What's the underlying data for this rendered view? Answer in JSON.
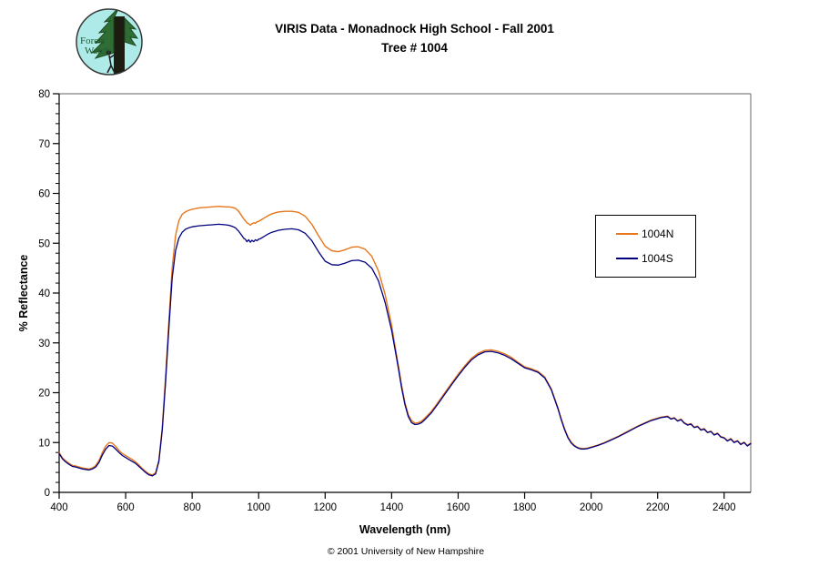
{
  "header": {
    "title_line1": "VIRIS Data - Monadnock High School - Fall 2001",
    "title_line2": "Tree # 1004",
    "logo": {
      "line1": "Forest",
      "line2": "Watch"
    }
  },
  "footer": {
    "copyright": "© 2001 University of New Hampshire"
  },
  "colors": {
    "series_north": "#E8761A",
    "series_south": "#000080",
    "plot_border_gray": "#808080",
    "axis_black": "#000000",
    "logo_background": "#aeeae8",
    "logo_tree_green": "#2f6d35",
    "logo_text_green": "#1e5a2e"
  },
  "chart_data": {
    "type": "line",
    "title": "VIRIS Data - Monadnock High School - Fall 2001",
    "subtitle": "Tree # 1004",
    "xlabel": "Wavelength (nm)",
    "ylabel": "% Reflectance",
    "xlim": [
      400,
      2480
    ],
    "ylim": [
      0,
      80
    ],
    "x_ticks": [
      400,
      600,
      800,
      1000,
      1200,
      1400,
      1600,
      1800,
      2000,
      2200,
      2400
    ],
    "y_ticks": [
      0,
      10,
      20,
      30,
      40,
      50,
      60,
      70,
      80
    ],
    "y_minor_step": 2,
    "grid": false,
    "legend_position": "middle-right",
    "x": [
      400,
      410,
      420,
      430,
      440,
      450,
      460,
      470,
      480,
      490,
      500,
      510,
      520,
      530,
      540,
      550,
      560,
      570,
      580,
      590,
      600,
      610,
      620,
      630,
      640,
      650,
      660,
      670,
      680,
      690,
      700,
      710,
      720,
      730,
      740,
      750,
      760,
      770,
      780,
      790,
      800,
      820,
      840,
      860,
      880,
      900,
      910,
      920,
      930,
      940,
      950,
      955,
      960,
      965,
      970,
      975,
      980,
      985,
      990,
      995,
      1000,
      1005,
      1010,
      1020,
      1030,
      1040,
      1060,
      1080,
      1100,
      1120,
      1140,
      1160,
      1180,
      1200,
      1220,
      1240,
      1260,
      1280,
      1300,
      1320,
      1340,
      1360,
      1380,
      1400,
      1410,
      1420,
      1430,
      1440,
      1450,
      1460,
      1470,
      1480,
      1490,
      1500,
      1520,
      1540,
      1560,
      1580,
      1600,
      1620,
      1640,
      1660,
      1680,
      1700,
      1720,
      1740,
      1760,
      1780,
      1800,
      1820,
      1840,
      1860,
      1880,
      1900,
      1910,
      1920,
      1930,
      1940,
      1950,
      1960,
      1970,
      1980,
      1990,
      2000,
      2020,
      2040,
      2060,
      2080,
      2100,
      2120,
      2140,
      2160,
      2180,
      2200,
      2210,
      2220,
      2230,
      2240,
      2250,
      2260,
      2270,
      2280,
      2290,
      2300,
      2310,
      2320,
      2330,
      2340,
      2350,
      2360,
      2370,
      2380,
      2390,
      2400,
      2410,
      2420,
      2430,
      2440,
      2450,
      2460,
      2470,
      2480
    ],
    "series": [
      {
        "name": "1004N",
        "color": "#E8761A",
        "values": [
          8.0,
          6.9,
          6.3,
          5.8,
          5.4,
          5.3,
          5.1,
          4.9,
          4.8,
          4.7,
          4.9,
          5.4,
          6.4,
          8.0,
          9.3,
          10.0,
          9.9,
          9.2,
          8.4,
          7.8,
          7.4,
          7.0,
          6.6,
          6.1,
          5.5,
          4.8,
          4.2,
          3.7,
          3.5,
          3.9,
          6.5,
          13.0,
          23.0,
          34.5,
          45.0,
          51.5,
          54.5,
          55.8,
          56.3,
          56.6,
          56.8,
          57.1,
          57.2,
          57.3,
          57.4,
          57.3,
          57.3,
          57.2,
          57.0,
          56.4,
          55.4,
          54.9,
          54.5,
          54.1,
          53.9,
          53.6,
          53.9,
          54.1,
          54.0,
          54.3,
          54.4,
          54.6,
          54.8,
          55.2,
          55.6,
          55.9,
          56.3,
          56.4,
          56.4,
          56.2,
          55.4,
          53.8,
          51.5,
          49.4,
          48.5,
          48.3,
          48.7,
          49.2,
          49.3,
          48.8,
          47.4,
          44.5,
          39.8,
          33.5,
          29.5,
          25.5,
          21.5,
          18.0,
          15.6,
          14.4,
          13.9,
          14.0,
          14.3,
          14.9,
          16.3,
          18.1,
          20.0,
          21.9,
          23.7,
          25.4,
          26.9,
          27.9,
          28.5,
          28.6,
          28.3,
          27.8,
          27.1,
          26.1,
          25.2,
          24.8,
          24.3,
          23.2,
          20.8,
          17.0,
          14.8,
          12.8,
          11.2,
          10.1,
          9.4,
          9.0,
          8.8,
          8.8,
          8.9,
          9.1,
          9.5,
          10.0,
          10.6,
          11.2,
          11.9,
          12.6,
          13.3,
          13.9,
          14.5,
          14.9,
          15.1,
          15.2,
          15.3,
          14.8,
          15.0,
          14.4,
          14.7,
          14.0,
          13.6,
          13.8,
          13.1,
          13.3,
          12.6,
          12.8,
          12.1,
          12.3,
          11.6,
          11.9,
          11.2,
          11.0,
          10.4,
          10.8,
          10.1,
          10.4,
          9.7,
          10.1,
          9.4,
          9.9
        ]
      },
      {
        "name": "1004S",
        "color": "#000080",
        "values": [
          7.8,
          6.7,
          6.1,
          5.6,
          5.2,
          5.1,
          4.9,
          4.7,
          4.6,
          4.5,
          4.7,
          5.1,
          6.0,
          7.5,
          8.7,
          9.4,
          9.3,
          8.7,
          8.0,
          7.4,
          7.0,
          6.6,
          6.2,
          5.8,
          5.2,
          4.6,
          4.0,
          3.5,
          3.3,
          3.7,
          6.2,
          12.5,
          22.0,
          33.0,
          43.0,
          48.5,
          51.0,
          52.2,
          52.8,
          53.1,
          53.3,
          53.5,
          53.6,
          53.7,
          53.8,
          53.7,
          53.6,
          53.4,
          53.1,
          52.4,
          51.5,
          51.0,
          50.8,
          50.3,
          50.7,
          50.2,
          50.6,
          50.3,
          50.7,
          50.5,
          50.8,
          50.9,
          51.1,
          51.5,
          51.9,
          52.2,
          52.6,
          52.8,
          52.9,
          52.7,
          52.0,
          50.5,
          48.3,
          46.4,
          45.7,
          45.6,
          46.0,
          46.5,
          46.6,
          46.2,
          45.0,
          42.5,
          38.2,
          32.5,
          28.8,
          25.0,
          21.0,
          17.6,
          15.2,
          14.0,
          13.6,
          13.7,
          14.0,
          14.6,
          16.0,
          17.8,
          19.7,
          21.6,
          23.4,
          25.1,
          26.6,
          27.6,
          28.2,
          28.3,
          28.0,
          27.5,
          26.8,
          25.9,
          25.0,
          24.6,
          24.1,
          23.0,
          20.6,
          16.8,
          14.6,
          12.6,
          11.0,
          9.9,
          9.3,
          8.9,
          8.7,
          8.7,
          8.8,
          9.0,
          9.4,
          9.9,
          10.5,
          11.1,
          11.8,
          12.5,
          13.2,
          13.8,
          14.4,
          14.8,
          15.0,
          15.1,
          15.2,
          14.7,
          14.9,
          14.3,
          14.6,
          13.9,
          13.5,
          13.7,
          13.0,
          13.2,
          12.5,
          12.7,
          12.0,
          12.2,
          11.5,
          11.8,
          11.1,
          10.9,
          10.3,
          10.7,
          10.0,
          10.3,
          9.6,
          10.0,
          9.3,
          9.8
        ]
      }
    ]
  }
}
